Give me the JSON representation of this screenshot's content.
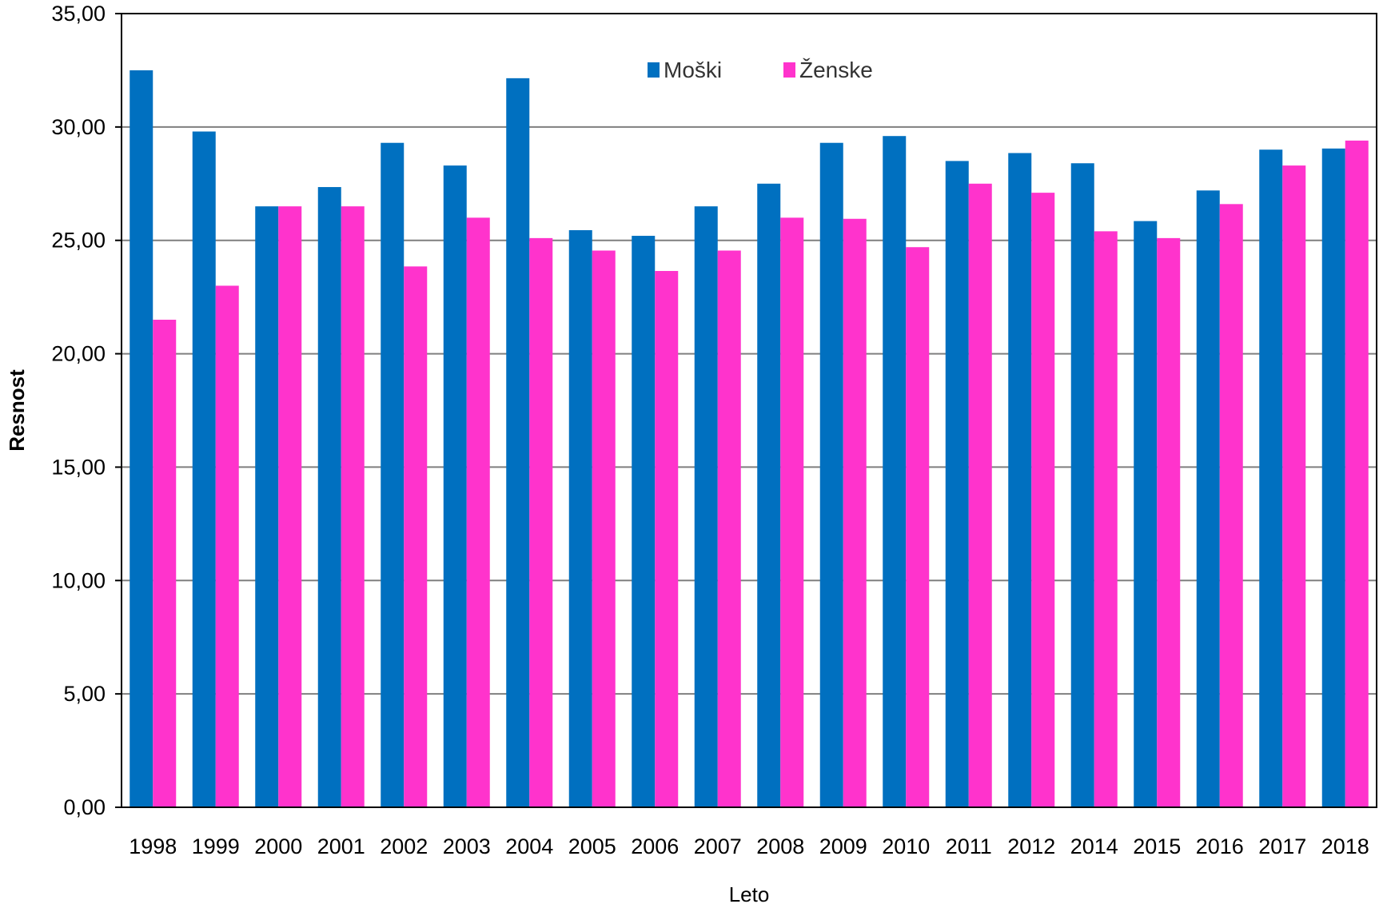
{
  "chart_data": {
    "type": "bar",
    "xlabel": "Leto",
    "ylabel": "Resnost",
    "ylim": [
      0,
      35
    ],
    "y_ticks": [
      "0,00",
      "5,00",
      "10,00",
      "15,00",
      "20,00",
      "25,00",
      "30,00",
      "35,00"
    ],
    "y_tick_values": [
      0,
      5,
      10,
      15,
      20,
      25,
      30,
      35
    ],
    "grid": true,
    "legend_position": "top-center",
    "categories": [
      "1998",
      "1999",
      "2000",
      "2001",
      "2002",
      "2003",
      "2004",
      "2005",
      "2006",
      "2007",
      "2008",
      "2009",
      "2010",
      "2011",
      "2012",
      "2014",
      "2015",
      "2016",
      "2017",
      "2018"
    ],
    "series": [
      {
        "name": "Moški",
        "color": "#0070C0",
        "values": [
          32.5,
          29.8,
          26.5,
          27.35,
          29.3,
          28.3,
          32.15,
          25.45,
          25.2,
          26.5,
          27.5,
          29.3,
          29.6,
          28.5,
          28.85,
          28.4,
          25.85,
          27.2,
          29.0,
          29.05
        ]
      },
      {
        "name": "Ženske",
        "color": "#FF33CC",
        "values": [
          21.5,
          23.0,
          26.5,
          26.5,
          23.85,
          26.0,
          25.1,
          24.55,
          23.65,
          24.55,
          26.0,
          25.95,
          24.7,
          27.5,
          27.1,
          25.4,
          25.1,
          26.6,
          28.3,
          29.4
        ]
      }
    ]
  }
}
